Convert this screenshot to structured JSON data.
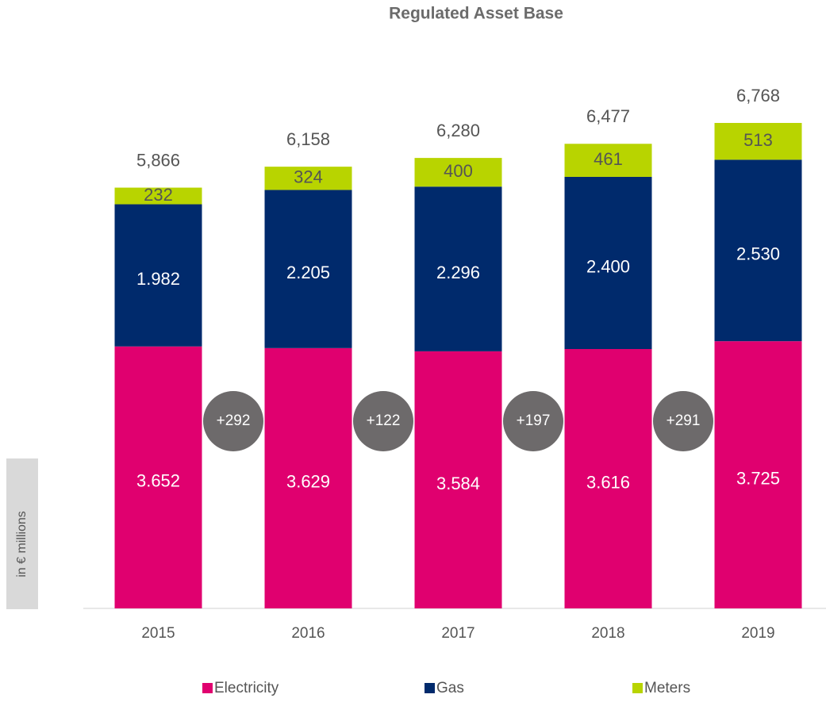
{
  "chart_data": {
    "type": "stacked_bar",
    "title": "Regulated Asset Base",
    "y_label": "in € millions",
    "categories": [
      "2015",
      "2016",
      "2017",
      "2018",
      "2019"
    ],
    "series": [
      {
        "name": "Electricity",
        "color": "#e0006f",
        "values": [
          3652,
          3629,
          3584,
          3616,
          3725
        ],
        "value_labels": [
          "3.652",
          "3.629",
          "3.584",
          "3.616",
          "3.725"
        ]
      },
      {
        "name": "Gas",
        "color": "#002a6c",
        "values": [
          1982,
          2205,
          2296,
          2400,
          2530
        ],
        "value_labels": [
          "1.982",
          "2.205",
          "2.296",
          "2.400",
          "2.530"
        ]
      },
      {
        "name": "Meters",
        "color": "#b8d400",
        "values": [
          232,
          324,
          400,
          461,
          513
        ]
      }
    ],
    "totals": [
      {
        "value": 5866,
        "label": "5,866"
      },
      {
        "value": 6158,
        "label": "6,158"
      },
      {
        "value": 6280,
        "label": "6,280"
      },
      {
        "value": 6477,
        "label": "6,477"
      },
      {
        "value": 6768,
        "label": "6,768"
      }
    ],
    "annotations": [
      "+292",
      "+122",
      "+197",
      "+291"
    ],
    "ylim": [
      0,
      7000
    ]
  }
}
